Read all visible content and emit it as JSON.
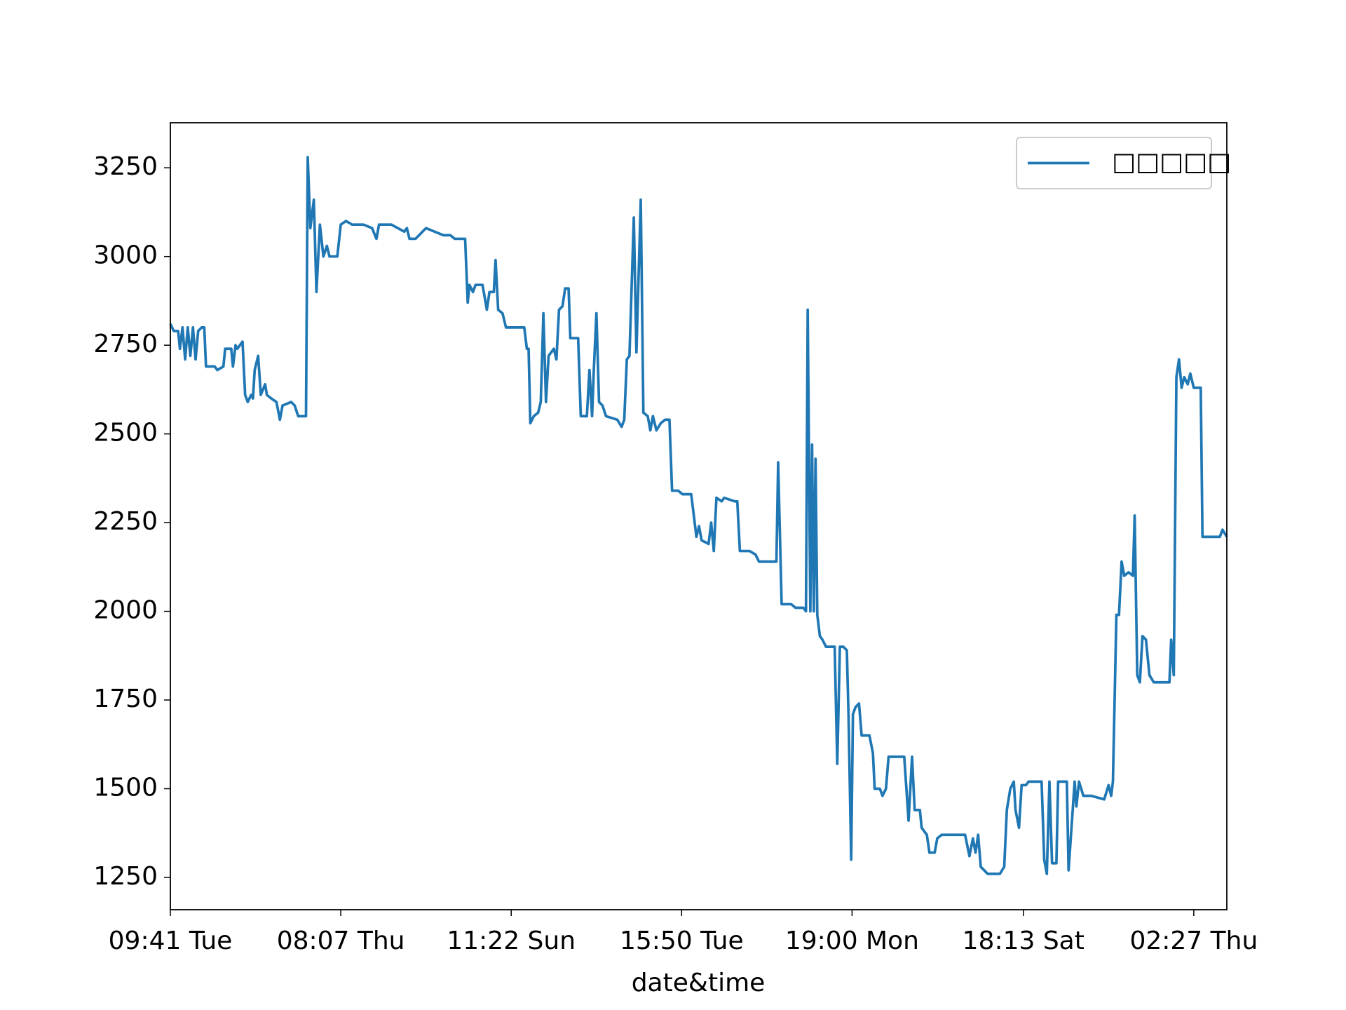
{
  "chart_data": {
    "type": "line",
    "xlabel": "date&time",
    "xlim": [
      0,
      1215
    ],
    "xticks": [
      {
        "value": 0,
        "label": "09:41 Tue"
      },
      {
        "value": 196,
        "label": "08:07 Thu"
      },
      {
        "value": 392,
        "label": "11:22 Sun"
      },
      {
        "value": 588,
        "label": "15:50 Tue"
      },
      {
        "value": 784,
        "label": "19:00 Mon"
      },
      {
        "value": 981,
        "label": "18:13 Sat"
      },
      {
        "value": 1177,
        "label": "02:27 Thu"
      }
    ],
    "ylim": [
      1159,
      3377
    ],
    "yticks": [
      1250,
      1500,
      1750,
      2000,
      2250,
      2500,
      2750,
      3000,
      3250
    ],
    "legend": "upper right",
    "x": [
      0,
      4,
      9,
      11,
      14,
      17,
      20,
      23,
      26,
      29,
      32,
      36,
      39,
      41,
      51,
      54,
      61,
      63,
      70,
      72,
      75,
      77,
      83,
      86,
      89,
      93,
      95,
      97,
      101,
      104,
      109,
      111,
      116,
      122,
      126,
      129,
      139,
      143,
      147,
      156,
      158,
      161,
      165,
      168,
      172,
      176,
      180,
      183,
      192,
      196,
      202,
      209,
      214,
      222,
      232,
      237,
      240,
      254,
      269,
      272,
      275,
      282,
      294,
      304,
      314,
      322,
      327,
      339,
      342,
      344,
      348,
      351,
      359,
      364,
      367,
      372,
      374,
      377,
      382,
      386,
      396,
      407,
      410,
      412,
      414,
      418,
      423,
      426,
      429,
      432,
      435,
      441,
      444,
      447,
      451,
      454,
      458,
      460,
      469,
      472,
      479,
      482,
      485,
      487,
      490,
      493,
      497,
      501,
      514,
      519,
      522,
      525,
      528,
      533,
      536,
      541,
      544,
      549,
      552,
      555,
      559,
      564,
      569,
      574,
      577,
      584,
      589,
      599,
      602,
      605,
      608,
      611,
      619,
      622,
      625,
      628,
      634,
      637,
      649,
      652,
      655,
      666,
      673,
      677,
      684,
      697,
      699,
      703,
      714,
      719,
      728,
      731,
      733,
      736,
      738,
      740,
      742,
      744,
      747,
      750,
      754,
      764,
      767,
      770,
      774,
      778,
      780,
      783,
      785,
      788,
      792,
      795,
      804,
      808,
      810,
      816,
      819,
      823,
      826,
      834,
      844,
      849,
      853,
      856,
      862,
      864,
      870,
      873,
      879,
      882,
      887,
      894,
      914,
      919,
      923,
      926,
      929,
      932,
      940,
      949,
      954,
      959,
      962,
      966,
      970,
      972,
      976,
      979,
      984,
      987,
      994,
      1002,
      1005,
      1008,
      1011,
      1014,
      1019,
      1021,
      1031,
      1033,
      1040,
      1042,
      1045,
      1050,
      1059,
      1074,
      1079,
      1082,
      1084,
      1088,
      1091,
      1094,
      1097,
      1102,
      1107,
      1109,
      1112,
      1115,
      1118,
      1122,
      1126,
      1131,
      1149,
      1151,
      1154,
      1157,
      1160,
      1163,
      1166,
      1170,
      1173,
      1177,
      1185,
      1187,
      1199,
      1207,
      1210,
      1215
    ],
    "series": [
      {
        "name": "□□□□□",
        "color": "#1f77b4",
        "values": [
          2810,
          2790,
          2790,
          2740,
          2800,
          2710,
          2800,
          2720,
          2800,
          2710,
          2790,
          2800,
          2800,
          2690,
          2690,
          2680,
          2690,
          2740,
          2740,
          2690,
          2750,
          2740,
          2760,
          2610,
          2590,
          2610,
          2600,
          2680,
          2720,
          2610,
          2640,
          2610,
          2600,
          2590,
          2540,
          2580,
          2590,
          2580,
          2550,
          2550,
          3280,
          3080,
          3160,
          2900,
          3090,
          3000,
          3030,
          3000,
          3000,
          3090,
          3100,
          3090,
          3090,
          3090,
          3080,
          3050,
          3090,
          3090,
          3070,
          3080,
          3050,
          3050,
          3080,
          3070,
          3060,
          3060,
          3050,
          3050,
          2870,
          2920,
          2900,
          2920,
          2920,
          2850,
          2900,
          2900,
          2990,
          2850,
          2840,
          2800,
          2800,
          2800,
          2740,
          2740,
          2530,
          2550,
          2560,
          2590,
          2840,
          2590,
          2720,
          2740,
          2710,
          2850,
          2860,
          2910,
          2910,
          2770,
          2770,
          2550,
          2550,
          2680,
          2550,
          2680,
          2840,
          2590,
          2580,
          2550,
          2540,
          2520,
          2540,
          2710,
          2720,
          3110,
          2730,
          3160,
          2560,
          2550,
          2510,
          2550,
          2510,
          2530,
          2540,
          2540,
          2340,
          2340,
          2330,
          2330,
          2270,
          2210,
          2240,
          2200,
          2190,
          2250,
          2170,
          2320,
          2310,
          2320,
          2310,
          2310,
          2170,
          2170,
          2160,
          2140,
          2140,
          2140,
          2420,
          2020,
          2020,
          2010,
          2010,
          2000,
          2850,
          2000,
          2470,
          2000,
          2430,
          1990,
          1930,
          1920,
          1900,
          1900,
          1570,
          1900,
          1900,
          1890,
          1700,
          1300,
          1710,
          1730,
          1740,
          1650,
          1650,
          1600,
          1500,
          1500,
          1480,
          1500,
          1590,
          1590,
          1590,
          1410,
          1590,
          1440,
          1440,
          1390,
          1370,
          1320,
          1320,
          1360,
          1370,
          1370,
          1370,
          1310,
          1360,
          1320,
          1370,
          1280,
          1260,
          1260,
          1260,
          1280,
          1440,
          1500,
          1520,
          1440,
          1390,
          1510,
          1510,
          1520,
          1520,
          1520,
          1300,
          1260,
          1520,
          1290,
          1290,
          1520,
          1520,
          1270,
          1520,
          1450,
          1520,
          1480,
          1480,
          1470,
          1510,
          1480,
          1520,
          1990,
          1990,
          2140,
          2100,
          2110,
          2100,
          2270,
          1820,
          1800,
          1930,
          1920,
          1820,
          1800,
          1800,
          1920,
          1820,
          2660,
          2710,
          2630,
          2660,
          2640,
          2670,
          2630,
          2630,
          2210,
          2210,
          2210,
          2230,
          2210
        ]
      }
    ]
  }
}
